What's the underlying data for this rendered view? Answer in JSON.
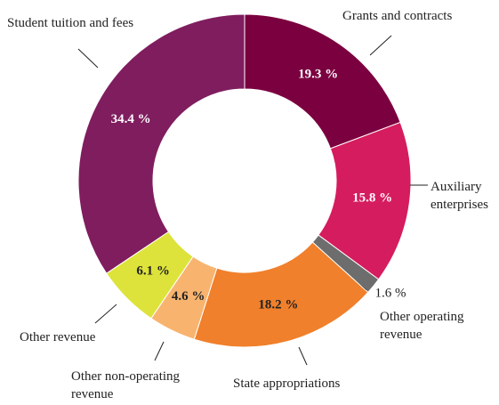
{
  "chart_data": {
    "type": "donut",
    "categories": [
      "Grants and contracts",
      "Auxiliary enterprises",
      "Other operating revenue",
      "State appropriations",
      "Other non-operating revenue",
      "Other revenue",
      "Student tuition and fees"
    ],
    "values": [
      19.3,
      15.8,
      1.6,
      18.2,
      4.6,
      6.1,
      34.4
    ],
    "value_labels": [
      "19.3 %",
      "15.8 %",
      "1.6 %",
      "18.2 %",
      "4.6 %",
      "6.1 %",
      "34.4 %"
    ],
    "colors": [
      "#7b003f",
      "#d51c5e",
      "#6d6d6d",
      "#f0802b",
      "#f8b46f",
      "#dde33a",
      "#7f1d5f"
    ]
  }
}
